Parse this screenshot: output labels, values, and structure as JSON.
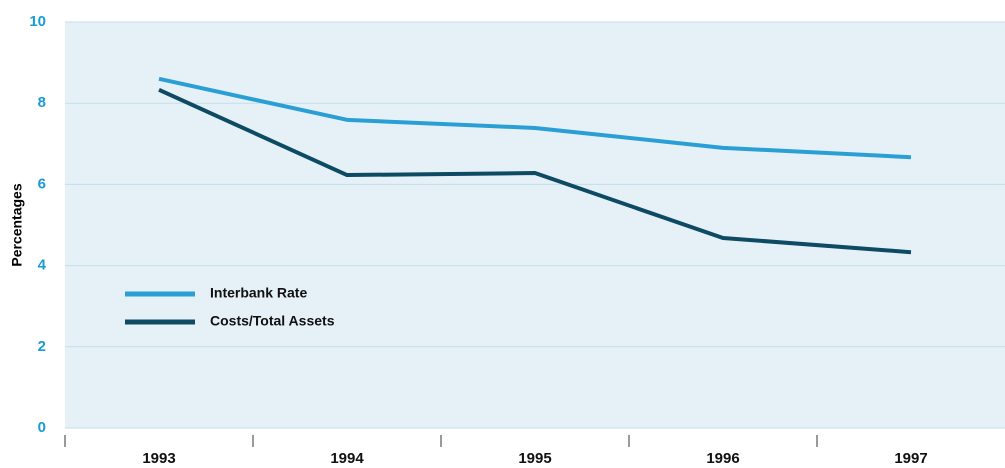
{
  "chart_data": {
    "type": "line",
    "y_label": "Percentages",
    "categories": [
      "1993",
      "1994",
      "1995",
      "1996",
      "1997"
    ],
    "series": [
      {
        "name": "Interbank Rate",
        "color": "#2a9fd6",
        "values": [
          8.6,
          7.59,
          7.39,
          6.9,
          6.67
        ]
      },
      {
        "name": "Costs/Total Assets",
        "color": "#0d4a63",
        "values": [
          8.33,
          6.23,
          6.28,
          4.68,
          4.33
        ]
      }
    ],
    "ylim": [
      0,
      10
    ],
    "yticks": [
      0,
      2,
      4,
      6,
      8,
      10
    ],
    "grid": true
  }
}
